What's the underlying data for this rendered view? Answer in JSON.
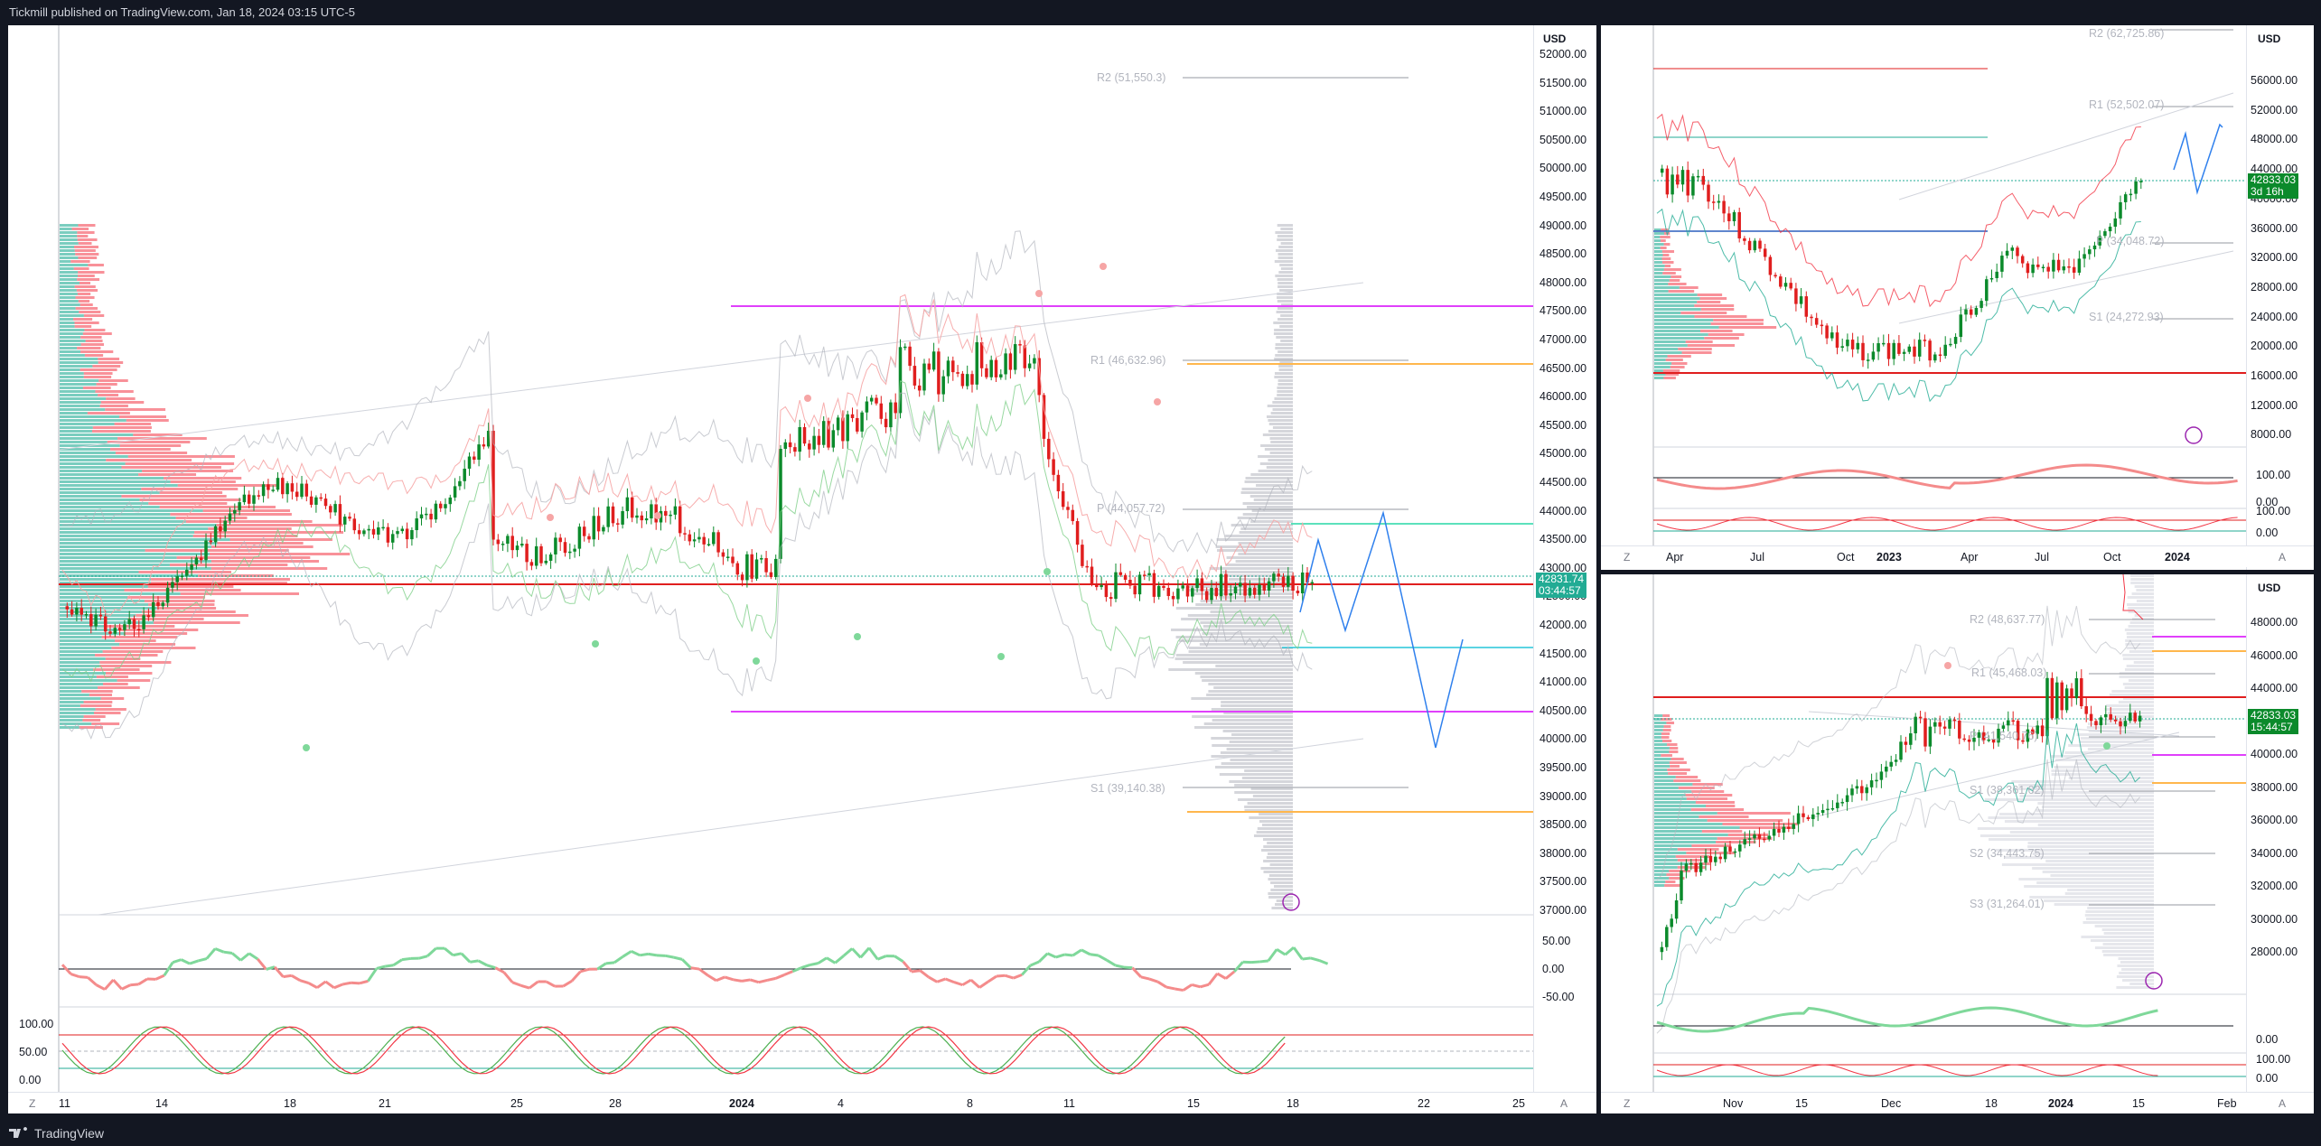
{
  "header": {
    "published": "Tickmill published on TradingView.com, Jan 18, 2024 03:15 UTC-5"
  },
  "footer": {
    "brand": "TradingView"
  },
  "colors": {
    "up": "#089981",
    "down": "#f23645",
    "bull_candle": "#0b8a2b",
    "bear_candle": "#e01e1e",
    "magenta": "#e040fb",
    "orange": "#ffb74d",
    "teal": "#26c6da",
    "price_tag": "#22ab94"
  },
  "main": {
    "currency": "USD",
    "price_labels": [
      "52000.00",
      "51500.00",
      "51000.00",
      "50500.00",
      "50000.00",
      "49500.00",
      "49000.00",
      "48500.00",
      "48000.00",
      "47500.00",
      "47000.00",
      "46500.00",
      "46000.00",
      "45500.00",
      "45000.00",
      "44500.00",
      "44000.00",
      "43500.00",
      "43000.00",
      "42500.00",
      "42000.00",
      "41500.00",
      "41000.00",
      "40500.00",
      "40000.00",
      "39500.00",
      "39000.00",
      "38500.00",
      "38000.00",
      "37500.00",
      "37000.00"
    ],
    "price_tag": {
      "price": "42831.74",
      "countdown": "03:44:57"
    },
    "pivots": {
      "r2": "R2 (51,550.3)",
      "r1": "R1 (46,632.96)",
      "p": "P (44,057.72)",
      "s1": "S1 (39,140.38)"
    },
    "rsi_labels": [
      "50.00",
      "0.00",
      "-50.00"
    ],
    "stoch_labels": [
      "100.00",
      "50.00",
      "0.00"
    ],
    "time_labels": [
      "11",
      "14",
      "18",
      "21",
      "25",
      "28",
      "2024",
      "4",
      "8",
      "11",
      "15",
      "18",
      "22",
      "25"
    ],
    "time_bold": "2024",
    "corner_left": "Z",
    "corner_right": "A"
  },
  "top_right": {
    "currency": "USD",
    "price_labels": [
      "56000.00",
      "52000.00",
      "48000.00",
      "44000.00",
      "40000.00",
      "36000.00",
      "32000.00",
      "28000.00",
      "24000.00",
      "20000.00",
      "16000.00",
      "12000.00",
      "8000.00"
    ],
    "price_tag": {
      "price": "42833.03",
      "countdown": "3d 16h"
    },
    "pivots": {
      "r2": "R2 (62,725.86)",
      "r1": "R1 (52,502.07)",
      "p": "P (34,048.72)",
      "s1": "S1 (24,272.93)"
    },
    "osc_labels": [
      "100.00",
      "0.00",
      "100.00",
      "0.00"
    ],
    "time_labels": [
      "Apr",
      "Jul",
      "Oct",
      "2023",
      "Apr",
      "Jul",
      "Oct",
      "2024"
    ],
    "corner_left": "Z",
    "corner_right": "A"
  },
  "bottom_right": {
    "currency": "USD",
    "price_labels": [
      "48000.00",
      "46000.00",
      "44000.00",
      "42000.00",
      "40000.00",
      "38000.00",
      "36000.00",
      "34000.00",
      "32000.00",
      "30000.00",
      "28000.00"
    ],
    "price_tag": {
      "price": "42833.03",
      "countdown": "15:44:57"
    },
    "pivots": {
      "r2": "R2 (48,637.77)",
      "r1": "R1 (45,468.03)",
      "p": "P (41,540.76)",
      "s1": "S1 (38,361.02)",
      "s2": "S2 (34,443.75)",
      "s3": "S3 (31,264.01)"
    },
    "osc_labels": [
      "0.00",
      "100.00",
      "0.00"
    ],
    "time_labels": [
      "Nov",
      "15",
      "Dec",
      "18",
      "2024",
      "15",
      "Feb"
    ],
    "corner_left": "Z",
    "corner_right": "A"
  }
}
